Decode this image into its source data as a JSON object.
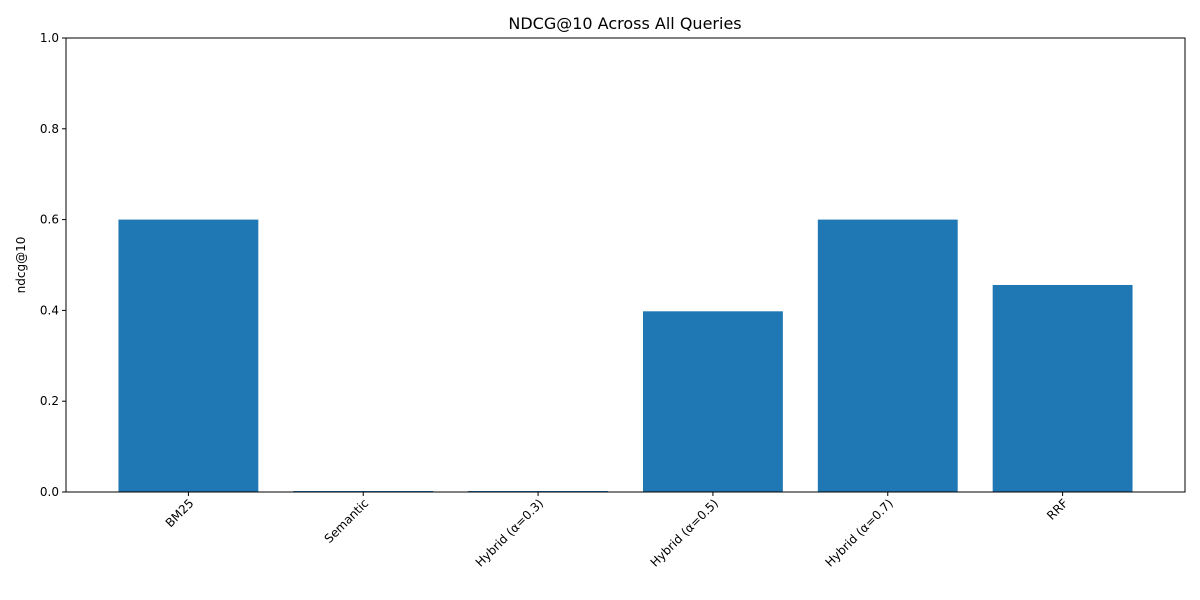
{
  "chart_data": {
    "type": "bar",
    "title": "NDCG@10 Across All Queries",
    "xlabel": "",
    "ylabel": "ndcg@10",
    "categories": [
      "BM25",
      "Semantic",
      "Hybrid (α=0.3)",
      "Hybrid (α=0.5)",
      "Hybrid (α=0.7)",
      "RRF"
    ],
    "values": [
      0.6,
      0.0,
      0.0,
      0.398,
      0.6,
      0.456
    ],
    "ylim": [
      0,
      1.0
    ],
    "yticks": [
      0.0,
      0.2,
      0.4,
      0.6,
      0.8,
      1.0
    ],
    "ytick_labels": [
      "0.0",
      "0.2",
      "0.4",
      "0.6",
      "0.8",
      "1.0"
    ],
    "bar_color": "#1f77b4",
    "grid": false,
    "legend": "none"
  }
}
